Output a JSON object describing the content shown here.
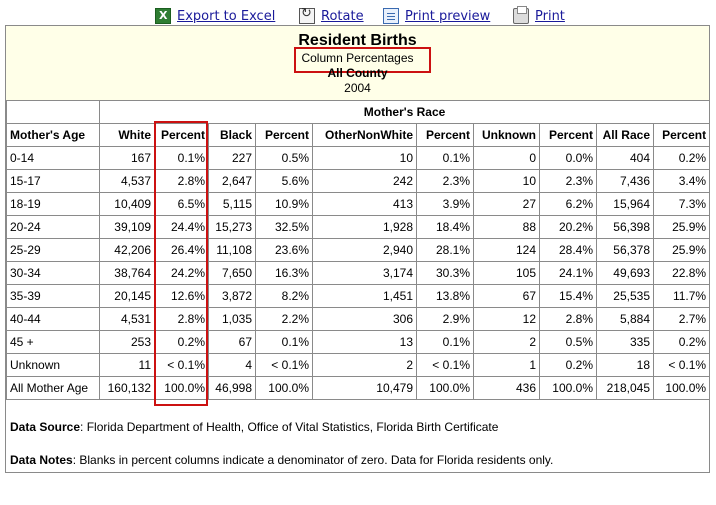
{
  "toolbar": {
    "export_label": "Export to Excel",
    "rotate_label": "Rotate",
    "preview_label": "Print preview",
    "print_label": "Print"
  },
  "report": {
    "title": "Resident Births",
    "subtitle": "Column Percentages",
    "county": "All County",
    "year": "2004",
    "group_header": "Mother's Race"
  },
  "table": {
    "headers": [
      "Mother's Age",
      "White",
      "Percent",
      "Black",
      "Percent",
      "OtherNonWhite",
      "Percent",
      "Unknown",
      "Percent",
      "All Race",
      "Percent"
    ],
    "rows": [
      [
        "0-14",
        "167",
        "0.1%",
        "227",
        "0.5%",
        "10",
        "0.1%",
        "0",
        "0.0%",
        "404",
        "0.2%"
      ],
      [
        "15-17",
        "4,537",
        "2.8%",
        "2,647",
        "5.6%",
        "242",
        "2.3%",
        "10",
        "2.3%",
        "7,436",
        "3.4%"
      ],
      [
        "18-19",
        "10,409",
        "6.5%",
        "5,115",
        "10.9%",
        "413",
        "3.9%",
        "27",
        "6.2%",
        "15,964",
        "7.3%"
      ],
      [
        "20-24",
        "39,109",
        "24.4%",
        "15,273",
        "32.5%",
        "1,928",
        "18.4%",
        "88",
        "20.2%",
        "56,398",
        "25.9%"
      ],
      [
        "25-29",
        "42,206",
        "26.4%",
        "11,108",
        "23.6%",
        "2,940",
        "28.1%",
        "124",
        "28.4%",
        "56,378",
        "25.9%"
      ],
      [
        "30-34",
        "38,764",
        "24.2%",
        "7,650",
        "16.3%",
        "3,174",
        "30.3%",
        "105",
        "24.1%",
        "49,693",
        "22.8%"
      ],
      [
        "35-39",
        "20,145",
        "12.6%",
        "3,872",
        "8.2%",
        "1,451",
        "13.8%",
        "67",
        "15.4%",
        "25,535",
        "11.7%"
      ],
      [
        "40-44",
        "4,531",
        "2.8%",
        "1,035",
        "2.2%",
        "306",
        "2.9%",
        "12",
        "2.8%",
        "5,884",
        "2.7%"
      ],
      [
        "45 +",
        "253",
        "0.2%",
        "67",
        "0.1%",
        "13",
        "0.1%",
        "2",
        "0.5%",
        "335",
        "0.2%"
      ],
      [
        "Unknown",
        "11",
        "< 0.1%",
        "4",
        "< 0.1%",
        "2",
        "< 0.1%",
        "1",
        "0.2%",
        "18",
        "< 0.1%"
      ],
      [
        "All Mother Age",
        "160,132",
        "100.0%",
        "46,998",
        "100.0%",
        "10,479",
        "100.0%",
        "436",
        "100.0%",
        "218,045",
        "100.0%"
      ]
    ]
  },
  "footer": {
    "source_label": "Data Source",
    "source_text": ": Florida Department of Health, Office of Vital Statistics, Florida Birth Certificate",
    "notes_label": "Data Notes",
    "notes_text": ": Blanks in percent columns indicate a denominator of zero. Data for Florida residents only."
  }
}
